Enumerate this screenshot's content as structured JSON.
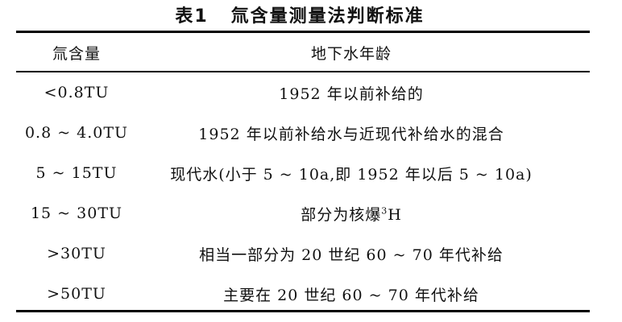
{
  "table": {
    "caption_number": "表1",
    "caption_title": "氚含量测量法判断标准",
    "headers": [
      "氚含量",
      "地下水年龄"
    ],
    "rows": [
      {
        "tritium": "<0.8TU",
        "age": "1952 年以前补给的"
      },
      {
        "tritium": "0.8 ~ 4.0TU",
        "age": "1952 年以前补给水与近现代补给水的混合"
      },
      {
        "tritium": "5 ~ 15TU",
        "age": "现代水(小于 5 ~ 10a,即 1952 年以后 5 ~ 10a)"
      },
      {
        "tritium": "15 ~ 30TU",
        "age_prefix": "部分为核爆",
        "age_sup": "3",
        "age_suffix": "H"
      },
      {
        "tritium": ">30TU",
        "age": "相当一部分为 20 世纪 60 ~ 70 年代补给"
      },
      {
        "tritium": ">50TU",
        "age": "主要在 20 世纪 60 ~ 70 年代补给"
      }
    ]
  }
}
